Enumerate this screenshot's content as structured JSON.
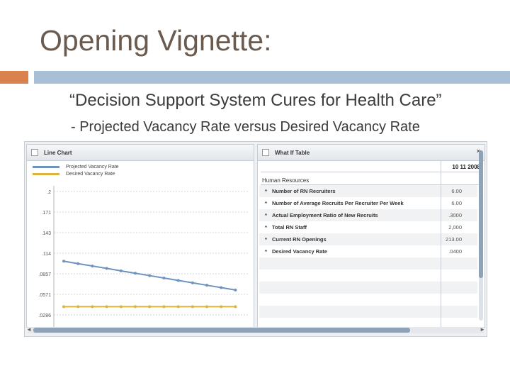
{
  "slide": {
    "title": "Opening Vignette:",
    "subtitle": "“Decision Support System Cures for Health Care”",
    "subtitle2": "- Projected Vacancy Rate versus Desired Vacancy Rate"
  },
  "colors": {
    "accent": "#d9824e",
    "line_bar": "#a8bfd6",
    "projected": "#6f93bf",
    "desired": "#dcb33c"
  },
  "line_chart": {
    "panel_title": "Line Chart",
    "legend": [
      "Projected Vacancy Rate",
      "Desired Vacancy Rate"
    ]
  },
  "chart_data": {
    "type": "line",
    "y_ticks": [
      ".2",
      ".171",
      ".143",
      ".114",
      ".0857",
      ".0571",
      ".0286"
    ],
    "ylim": [
      0.0286,
      0.2
    ],
    "series": [
      {
        "name": "Projected Vacancy Rate",
        "values": [
          0.1032,
          0.0998,
          0.0965,
          0.0932,
          0.0898,
          0.0865,
          0.0832,
          0.0798,
          0.0765,
          0.0732,
          0.0698,
          0.0665,
          0.0632
        ]
      },
      {
        "name": "Desired Vacancy Rate",
        "values": [
          0.04,
          0.04,
          0.04,
          0.04,
          0.04,
          0.04,
          0.04,
          0.04,
          0.04,
          0.04,
          0.04,
          0.04,
          0.04
        ]
      }
    ]
  },
  "what_if": {
    "panel_title": "What If Table",
    "close": "×",
    "date_header": "10 11 2008",
    "section": "Human Resources",
    "rows": [
      {
        "label": "Number of RN Recruiters",
        "value": "6.00"
      },
      {
        "label": "Number of Average Recruits Per Recruiter Per Week",
        "value": "6.00"
      },
      {
        "label": "Actual Employment Ratio of New Recruits",
        "value": ".3000"
      },
      {
        "label": "Total RN Staff",
        "value": "2,000"
      },
      {
        "label": "Current RN Openings",
        "value": "213.00"
      },
      {
        "label": "Desired Vacancy Rate",
        "value": ".0400"
      }
    ]
  },
  "scroll": {
    "left_arrow": "◄",
    "right_arrow": "►"
  }
}
